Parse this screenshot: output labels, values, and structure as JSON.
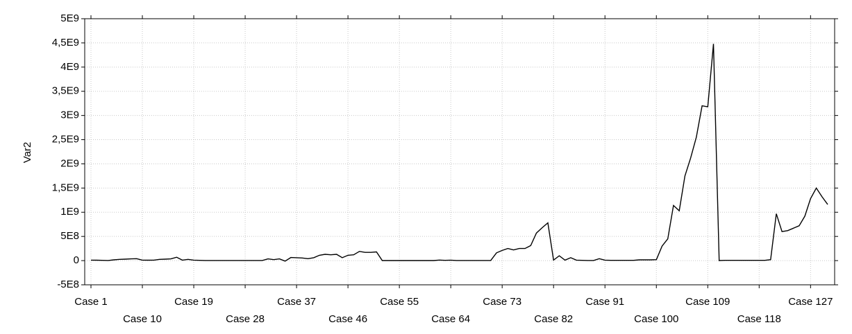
{
  "chart_data": {
    "type": "line",
    "y_label": "Var2",
    "color": "#000000",
    "categories": [
      "Case 1",
      null,
      null,
      null,
      null,
      null,
      null,
      null,
      null,
      "Case 10",
      null,
      null,
      null,
      null,
      null,
      null,
      null,
      null,
      "Case 19",
      null,
      null,
      null,
      null,
      null,
      null,
      null,
      null,
      "Case 28",
      null,
      null,
      null,
      null,
      null,
      null,
      null,
      null,
      "Case 37",
      null,
      null,
      null,
      null,
      null,
      null,
      null,
      null,
      "Case 46",
      null,
      null,
      null,
      null,
      null,
      null,
      null,
      null,
      "Case 55",
      null,
      null,
      null,
      null,
      null,
      null,
      null,
      null,
      "Case 64",
      null,
      null,
      null,
      null,
      null,
      null,
      null,
      null,
      "Case 73",
      null,
      null,
      null,
      null,
      null,
      null,
      null,
      null,
      "Case 82",
      null,
      null,
      null,
      null,
      null,
      null,
      null,
      null,
      "Case 91",
      null,
      null,
      null,
      null,
      null,
      null,
      null,
      null,
      "Case 100",
      null,
      null,
      null,
      null,
      null,
      null,
      null,
      null,
      "Case 109",
      null,
      null,
      null,
      null,
      null,
      null,
      null,
      null,
      "Case 118",
      null,
      null,
      null,
      null,
      null,
      null,
      null,
      null,
      "Case 127",
      null,
      null,
      null
    ],
    "values": [
      10000000.0,
      8000000.0,
      5000000.0,
      3000000.0,
      15000000.0,
      25000000.0,
      30000000.0,
      35000000.0,
      40000000.0,
      10000000.0,
      8000000.0,
      10000000.0,
      25000000.0,
      30000000.0,
      35000000.0,
      70000000.0,
      10000000.0,
      25000000.0,
      10000000.0,
      5000000.0,
      3000000.0,
      3000000.0,
      3000000.0,
      3000000.0,
      3000000.0,
      3000000.0,
      3000000.0,
      3000000.0,
      3000000.0,
      3000000.0,
      3000000.0,
      35000000.0,
      20000000.0,
      35000000.0,
      -10000000.0,
      65000000.0,
      60000000.0,
      55000000.0,
      40000000.0,
      60000000.0,
      110000000.0,
      130000000.0,
      120000000.0,
      130000000.0,
      60000000.0,
      110000000.0,
      120000000.0,
      190000000.0,
      170000000.0,
      170000000.0,
      180000000.0,
      2000000.0,
      2000000.0,
      2000000.0,
      2000000.0,
      2000000.0,
      2000000.0,
      2000000.0,
      2000000.0,
      2000000.0,
      2000000.0,
      12000000.0,
      5000000.0,
      10000000.0,
      3000000.0,
      3000000.0,
      3000000.0,
      3000000.0,
      3000000.0,
      3000000.0,
      3000000.0,
      160000000.0,
      210000000.0,
      250000000.0,
      220000000.0,
      250000000.0,
      250000000.0,
      310000000.0,
      570000000.0,
      680000000.0,
      780000000.0,
      10000000.0,
      100000000.0,
      10000000.0,
      60000000.0,
      10000000.0,
      5000000.0,
      3000000.0,
      3000000.0,
      40000000.0,
      10000000.0,
      5000000.0,
      5000000.0,
      5000000.0,
      5000000.0,
      5000000.0,
      15000000.0,
      15000000.0,
      15000000.0,
      20000000.0,
      300000000.0,
      450000000.0,
      1140000000.0,
      1030000000.0,
      1750000000.0,
      2120000000.0,
      2550000000.0,
      3200000000.0,
      3180000000.0,
      4480000000.0,
      2000000.0,
      5000000.0,
      5000000.0,
      5000000.0,
      5000000.0,
      5000000.0,
      5000000.0,
      5000000.0,
      5000000.0,
      20000000.0,
      970000000.0,
      600000000.0,
      620000000.0,
      670000000.0,
      720000000.0,
      920000000.0,
      1280000000.0,
      1500000000.0,
      1320000000.0,
      1160000000.0
    ],
    "ylim": [
      -500000000.0,
      5000000000.0
    ],
    "yticks": [
      {
        "value": -500000000.0,
        "label": "-5E8"
      },
      0,
      {
        "value": 500000000.0,
        "label": "5E8"
      },
      {
        "value": 1000000000.0,
        "label": "1E9"
      },
      {
        "value": 1500000000.0,
        "label": "1,5E9"
      },
      {
        "value": 2000000000.0,
        "label": "2E9"
      },
      {
        "value": 2500000000.0,
        "label": "2,5E9"
      },
      {
        "value": 3000000000.0,
        "label": "3E9"
      },
      {
        "value": 3500000000.0,
        "label": "3,5E9"
      },
      {
        "value": 4000000000.0,
        "label": "4E9"
      },
      {
        "value": 4500000000.0,
        "label": "4,5E9"
      },
      {
        "value": 5000000000.0,
        "label": "5E9"
      }
    ],
    "grid": true
  }
}
